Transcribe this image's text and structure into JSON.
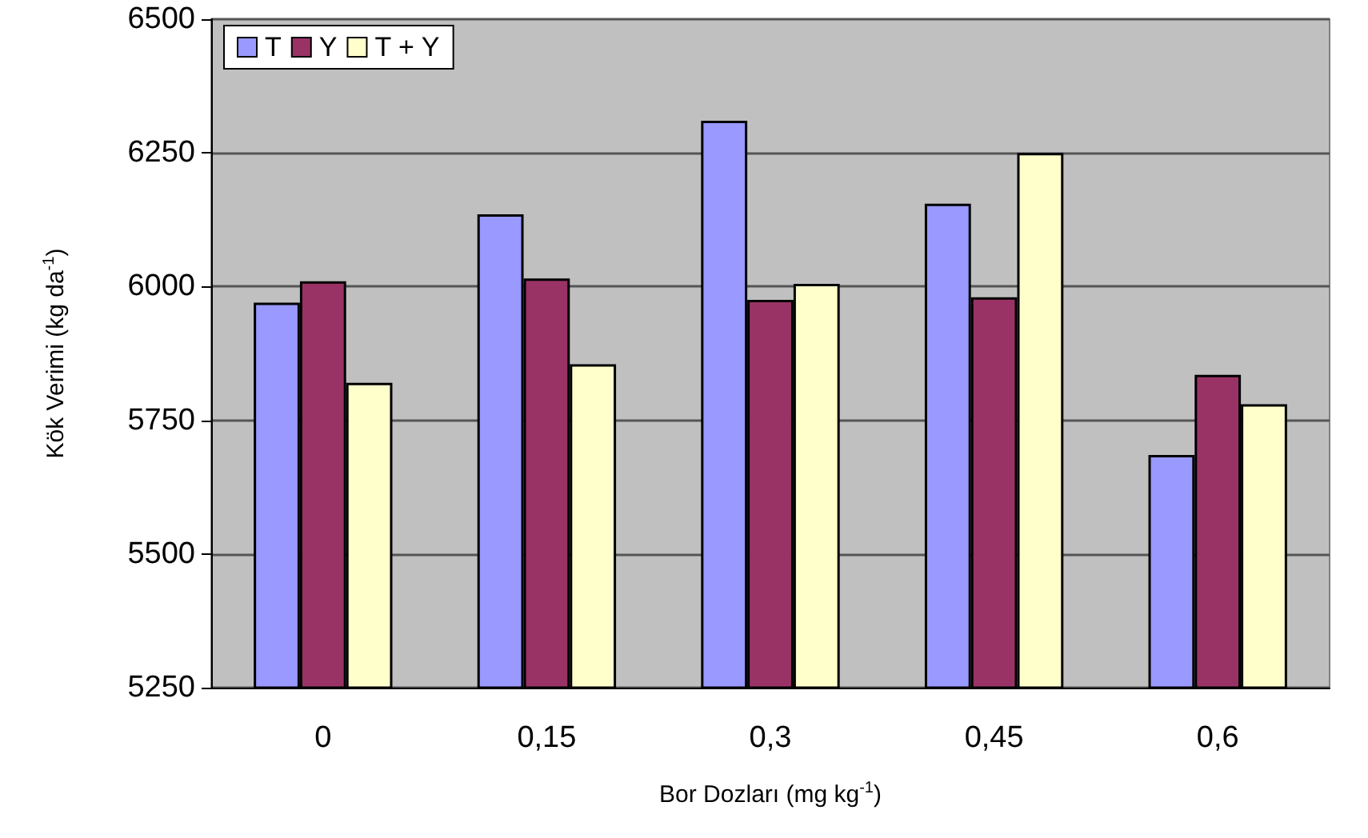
{
  "chart_data": {
    "type": "bar",
    "xlabel": "Bor Dozları (mg kg$^{-1}$)",
    "ylabel": "Kök Verimi (kg da$^{-1}$)",
    "categories": [
      "0",
      "0,15",
      "0,3",
      "0,45",
      "0,6"
    ],
    "series": [
      {
        "name": "T",
        "color": "#9999ff",
        "values": [
          5970,
          6135,
          6310,
          6155,
          5685
        ]
      },
      {
        "name": "Y",
        "color": "#993366",
        "values": [
          6010,
          6015,
          5975,
          5980,
          5835
        ]
      },
      {
        "name": "T + Y",
        "color": "#ffffcc",
        "values": [
          5820,
          5855,
          6005,
          6250,
          5780
        ]
      }
    ],
    "ylim": [
      5250,
      6500
    ],
    "yticks": [
      5250,
      5500,
      5750,
      6000,
      6250,
      6500
    ],
    "grid": "y",
    "legend": "top left"
  }
}
